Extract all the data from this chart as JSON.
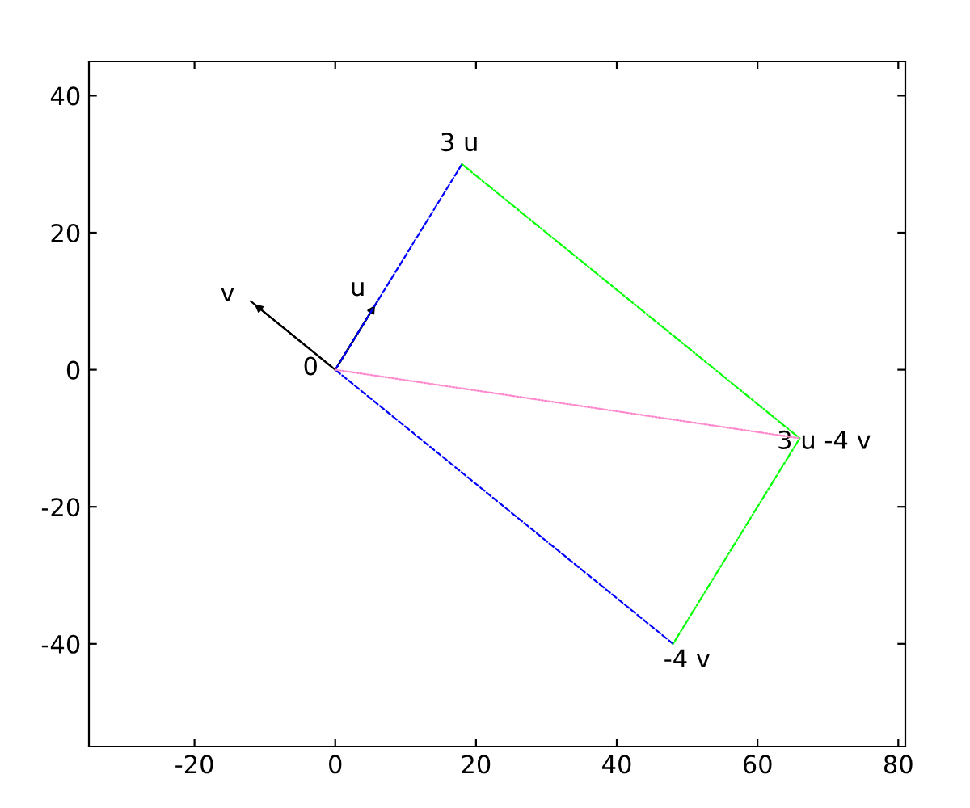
{
  "chart_data": {
    "type": "line",
    "xlim": [
      -35,
      81
    ],
    "ylim": [
      -55,
      45
    ],
    "xticks": [
      -20,
      0,
      20,
      40,
      60,
      80
    ],
    "yticks": [
      -40,
      -20,
      0,
      20,
      40
    ],
    "grid": false,
    "series": [
      {
        "x": [
          0,
          6
        ],
        "values": [
          0,
          10
        ],
        "color": "#000000",
        "line_style": "solid"
      },
      {
        "x": [
          0,
          -12
        ],
        "values": [
          0,
          10
        ],
        "color": "#000000",
        "line_style": "solid"
      },
      {
        "x": [
          18,
          0,
          48
        ],
        "values": [
          30,
          0,
          -40
        ],
        "color": "#0000ff",
        "line_style": "dashed"
      },
      {
        "x": [
          18,
          66,
          48
        ],
        "values": [
          30,
          -10,
          -40
        ],
        "color": "#00ff00",
        "line_style": "dashdot"
      },
      {
        "x": [
          0,
          66
        ],
        "values": [
          0,
          -10
        ],
        "color": "#ff88cc",
        "line_style": "dotted"
      }
    ],
    "annotations": [
      {
        "text": "u",
        "x": 6,
        "y": 10
      },
      {
        "text": "v",
        "x": -12,
        "y": 10
      },
      {
        "text": "0",
        "x": 0,
        "y": 0
      },
      {
        "text": "3 u",
        "x": 18,
        "y": 30
      },
      {
        "text": "3 u -4 v",
        "x": 66,
        "y": -10
      },
      {
        "text": "-4 v",
        "x": 48,
        "y": -40
      }
    ]
  }
}
